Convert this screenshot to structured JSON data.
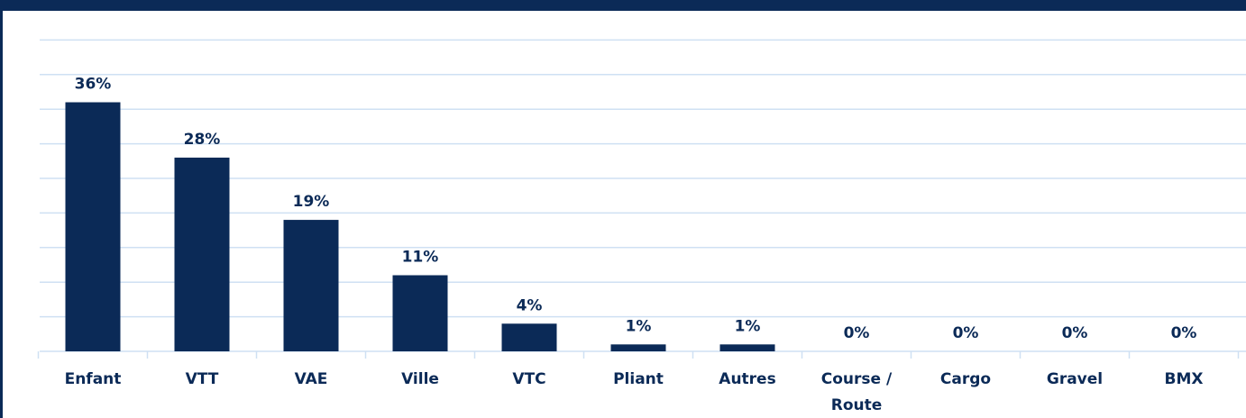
{
  "chart_data": {
    "type": "bar",
    "categories": [
      "Enfant",
      "VTT",
      "VAE",
      "Ville",
      "VTC",
      "Pliant",
      "Autres",
      "Course / Route",
      "Cargo",
      "Gravel",
      "BMX"
    ],
    "values": [
      36,
      28,
      19,
      11,
      4,
      1,
      1,
      0,
      0,
      0,
      0
    ],
    "value_labels": [
      "36%",
      "28%",
      "19%",
      "11%",
      "4%",
      "1%",
      "1%",
      "0%",
      "0%",
      "0%",
      "0%"
    ],
    "color": "#0b2a57",
    "ylim": [
      0,
      45
    ],
    "yticks": [
      0,
      5,
      10,
      15,
      20,
      25,
      30,
      35,
      40,
      45
    ],
    "grid": true
  }
}
